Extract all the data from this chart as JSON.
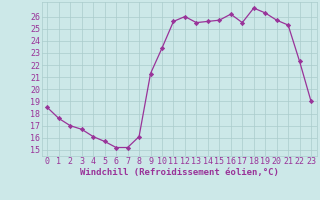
{
  "x": [
    0,
    1,
    2,
    3,
    4,
    5,
    6,
    7,
    8,
    9,
    10,
    11,
    12,
    13,
    14,
    15,
    16,
    17,
    18,
    19,
    20,
    21,
    22,
    23
  ],
  "y": [
    18.5,
    17.6,
    17.0,
    16.7,
    16.1,
    15.7,
    15.2,
    15.2,
    16.1,
    21.3,
    23.4,
    25.6,
    26.0,
    25.5,
    25.6,
    25.7,
    26.2,
    25.5,
    26.7,
    26.3,
    25.7,
    25.3,
    22.3,
    19.0
  ],
  "xlabel": "Windchill (Refroidissement éolien,°C)",
  "ylabel": "",
  "xlim": [
    -0.5,
    23.5
  ],
  "ylim": [
    14.5,
    27.2
  ],
  "yticks": [
    15,
    16,
    17,
    18,
    19,
    20,
    21,
    22,
    23,
    24,
    25,
    26
  ],
  "xticks": [
    0,
    1,
    2,
    3,
    4,
    5,
    6,
    7,
    8,
    9,
    10,
    11,
    12,
    13,
    14,
    15,
    16,
    17,
    18,
    19,
    20,
    21,
    22,
    23
  ],
  "line_color": "#993399",
  "marker": "D",
  "marker_size": 2.2,
  "bg_color": "#cce8e8",
  "grid_color": "#aacccc",
  "xlabel_color": "#993399",
  "tick_color": "#993399",
  "xlabel_fontsize": 6.5,
  "tick_fontsize": 6.0
}
